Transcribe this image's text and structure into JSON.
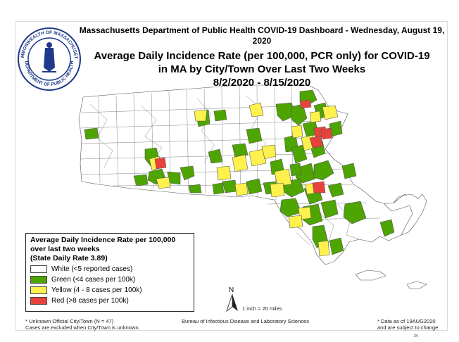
{
  "header": {
    "line1": "Massachusetts Department of Public Health COVID-19 Dashboard - Wednesday, August 19, 2020",
    "line2": "Average Daily Incidence Rate (per 100,000, PCR only) for COVID-19",
    "line3": "in MA by City/Town Over Last Two Weeks",
    "line4": "8/2/2020 - 8/15/2020"
  },
  "seal": {
    "outer_text_top": "COMMONWEALTH OF MASSACHUSETTS",
    "outer_text_bottom": "DEPARTMENT OF PUBLIC HEALTH"
  },
  "legend": {
    "title1": "Average Daily Incidence Rate per 100,000",
    "title2": "over last two weeks",
    "title3": "(State Daily Rate 3.89)",
    "items": [
      {
        "label": "White (<5 reported cases)",
        "color": "#ffffff"
      },
      {
        "label": "Green (<4 cases per 100k)",
        "color": "#4ea400"
      },
      {
        "label": "Yellow (4 - 8 cases per 100k)",
        "color": "#fff14d"
      },
      {
        "label": "Red (>8 cases per 100k)",
        "color": "#e8433b"
      }
    ]
  },
  "scale": {
    "text": "1 inch = 20 miles",
    "north": "N"
  },
  "footer": {
    "unknown1": "* Unknown Official City/Town (N = 47)",
    "unknown2": "Cases are excluded when City/Town is unknown.",
    "bureau": "Bureau of Infectious Disease and Laboratory Sciences",
    "data_as_of1": "* Data as of 19AUG2020",
    "data_as_of2": "and are subject to change.",
    "page_number": "24"
  },
  "colors": {
    "white": "#ffffff",
    "green": "#4ea400",
    "yellow": "#fff14d",
    "red": "#e8433b",
    "border": "#555555"
  }
}
